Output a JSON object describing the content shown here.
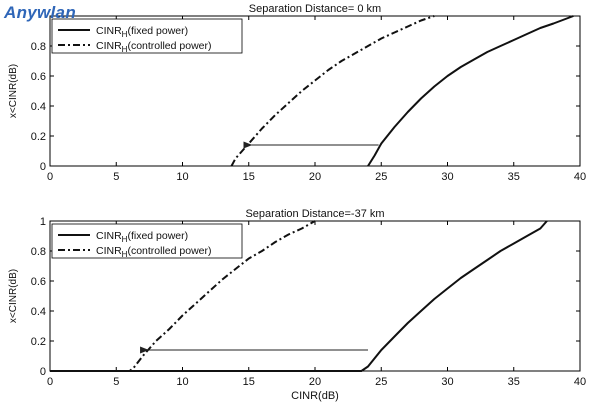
{
  "watermark": "Anywlan",
  "chart_data": [
    {
      "type": "line",
      "title": "Separation Distance= 0 km",
      "xlabel": "",
      "ylabel": "x<CINR(dB)",
      "xlim": [
        0,
        40
      ],
      "ylim": [
        0,
        1
      ],
      "xticks": [
        "0",
        "5",
        "10",
        "15",
        "20",
        "25",
        "30",
        "35",
        "40"
      ],
      "yticks": [
        "0",
        "0.2",
        "0.4",
        "0.6",
        "0.8"
      ],
      "grid": false,
      "legend_position": "top-left",
      "series": [
        {
          "name": "CINR",
          "name_sub": "H",
          "name_suffix": "(fixed power)",
          "style": "solid",
          "x": [
            24.0,
            24.5,
            25.0,
            26.0,
            27.0,
            28.0,
            29.0,
            30.0,
            31.0,
            32.0,
            33.0,
            34.0,
            35.0,
            36.0,
            37.0,
            38.0,
            39.5
          ],
          "y": [
            0.0,
            0.07,
            0.15,
            0.26,
            0.36,
            0.45,
            0.53,
            0.6,
            0.66,
            0.71,
            0.76,
            0.8,
            0.84,
            0.88,
            0.92,
            0.95,
            1.0
          ]
        },
        {
          "name": "CINR",
          "name_sub": "H",
          "name_suffix": "(controlled power)",
          "style": "dashdot",
          "x": [
            13.7,
            14.0,
            15.0,
            16.0,
            17.0,
            18.0,
            19.0,
            20.0,
            21.0,
            22.0,
            23.0,
            24.0,
            25.0,
            26.0,
            27.0,
            28.0,
            29.0
          ],
          "y": [
            0.0,
            0.05,
            0.15,
            0.25,
            0.34,
            0.42,
            0.5,
            0.57,
            0.64,
            0.7,
            0.75,
            0.8,
            0.85,
            0.89,
            0.93,
            0.97,
            1.0
          ]
        }
      ],
      "annotation": {
        "type": "arrow",
        "from": [
          24.8,
          0.14
        ],
        "to": [
          15.2,
          0.14
        ]
      }
    },
    {
      "type": "line",
      "title": "Separation Distance=-37 km",
      "xlabel": "CINR(dB)",
      "ylabel": "x<CINR(dB)",
      "xlim": [
        0,
        40
      ],
      "ylim": [
        0,
        1
      ],
      "xticks": [
        "0",
        "5",
        "10",
        "15",
        "20",
        "25",
        "30",
        "35",
        "40"
      ],
      "yticks": [
        "0",
        "0.2",
        "0.4",
        "0.6",
        "0.8",
        "1"
      ],
      "grid": false,
      "legend_position": "top-left",
      "series": [
        {
          "name": "CINR",
          "name_sub": "H",
          "name_suffix": "(fixed power)",
          "style": "solid",
          "x": [
            0.0,
            23.5,
            24.0,
            25.0,
            26.0,
            27.0,
            28.0,
            29.0,
            30.0,
            31.0,
            32.0,
            33.0,
            34.0,
            35.0,
            36.0,
            37.0,
            37.5
          ],
          "y": [
            0.0,
            0.0,
            0.03,
            0.14,
            0.23,
            0.32,
            0.4,
            0.48,
            0.55,
            0.62,
            0.68,
            0.74,
            0.8,
            0.85,
            0.9,
            0.95,
            1.0
          ]
        },
        {
          "name": "CINR",
          "name_sub": "H",
          "name_suffix": "(controlled power)",
          "style": "dashdot",
          "x": [
            0.0,
            6.0,
            6.3,
            7.0,
            8.0,
            9.0,
            10.0,
            11.0,
            12.0,
            13.0,
            14.0,
            15.0,
            16.0,
            17.0,
            18.0,
            19.0,
            20.0
          ],
          "y": [
            0.0,
            0.0,
            0.02,
            0.1,
            0.2,
            0.28,
            0.37,
            0.45,
            0.53,
            0.61,
            0.68,
            0.75,
            0.8,
            0.86,
            0.91,
            0.95,
            1.0
          ]
        }
      ],
      "annotation": {
        "type": "arrow",
        "from": [
          24.0,
          0.14
        ],
        "to": [
          7.4,
          0.14
        ]
      }
    }
  ]
}
